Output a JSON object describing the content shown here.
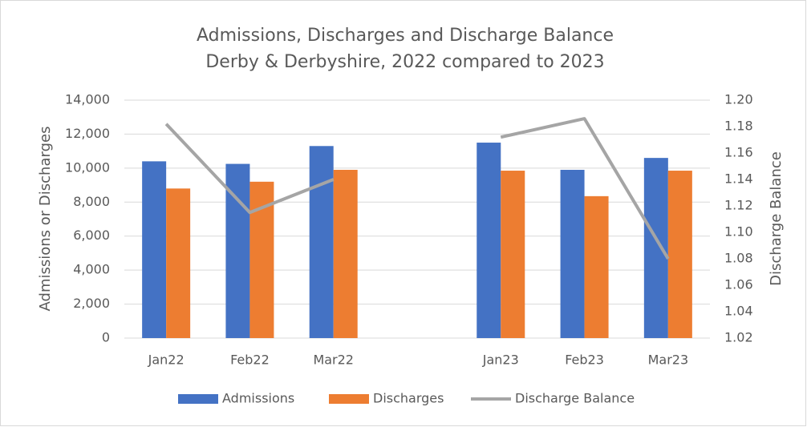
{
  "chart_data": {
    "type": "bar",
    "title": "Admissions, Discharges and Discharge Balance",
    "subtitle": "Derby & Derbyshire, 2022 compared to 2023",
    "y_label": "Admissions or Discharges",
    "y2_label": "Discharge Balance",
    "categories": [
      "Jan22",
      "Feb22",
      "Mar22",
      null,
      "Jan23",
      "Feb23",
      "Mar23"
    ],
    "series": [
      {
        "name": "Admissions",
        "color": "#4472c4",
        "values": [
          10400,
          10250,
          11300,
          null,
          11500,
          9900,
          10600
        ]
      },
      {
        "name": "Discharges",
        "color": "#ed7d31",
        "values": [
          8800,
          9200,
          9900,
          null,
          9850,
          8350,
          9850
        ]
      },
      {
        "name": "Discharge Balance",
        "color": "#a5a5a5",
        "type": "line",
        "axis": "y2",
        "values": [
          1.182,
          1.115,
          1.14,
          null,
          1.172,
          1.186,
          1.08
        ]
      }
    ],
    "ylim": [
      0,
      14000
    ],
    "yticks": [
      0,
      {
        "value": 2000,
        "label": "2,000"
      },
      {
        "value": 4000,
        "label": "4,000"
      },
      {
        "value": 6000,
        "label": "6,000"
      },
      {
        "value": 8000,
        "label": "8,000"
      },
      {
        "value": 10000,
        "label": "10,000"
      },
      {
        "value": 12000,
        "label": "12,000"
      },
      {
        "value": 14000,
        "label": "14,000"
      }
    ],
    "y2lim": [
      1.02,
      1.2
    ],
    "y2ticks": [
      {
        "value": 1.02,
        "label": "1.02"
      },
      {
        "value": 1.04,
        "label": "1.04"
      },
      {
        "value": 1.06,
        "label": "1.06"
      },
      {
        "value": 1.08,
        "label": "1.08"
      },
      {
        "value": 1.1,
        "label": "1.10"
      },
      {
        "value": 1.12,
        "label": "1.12"
      },
      {
        "value": 1.14,
        "label": "1.14"
      },
      {
        "value": 1.16,
        "label": "1.16"
      },
      {
        "value": 1.18,
        "label": "1.18"
      },
      {
        "value": 1.2,
        "label": "1.20"
      }
    ],
    "grid": true,
    "legend": "bottom"
  }
}
